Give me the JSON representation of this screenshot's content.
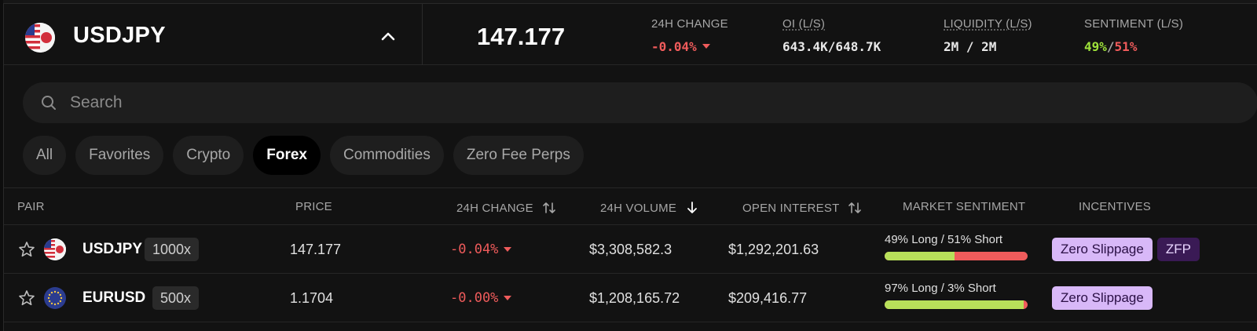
{
  "header": {
    "pair": "USDJPY",
    "price": "147.177",
    "stats": [
      {
        "label": "24H CHANGE",
        "value": "-0.04%"
      },
      {
        "label": "OI (L/S)",
        "value": "643.4K/648.7K"
      },
      {
        "label": "LIQUIDITY (L/S)",
        "value": "2M / 2M"
      },
      {
        "label": "SENTIMENT (L/S)",
        "long": "49%",
        "sep": "/",
        "short": "51%"
      }
    ]
  },
  "search": {
    "placeholder": "Search"
  },
  "tabs": [
    {
      "label": "All"
    },
    {
      "label": "Favorites"
    },
    {
      "label": "Crypto"
    },
    {
      "label": "Forex",
      "active": true
    },
    {
      "label": "Commodities"
    },
    {
      "label": "Zero Fee Perps"
    }
  ],
  "table": {
    "columns": {
      "pair": "PAIR",
      "price": "PRICE",
      "change": "24H CHANGE",
      "volume": "24H VOLUME",
      "oi": "OPEN INTEREST",
      "sentiment": "MARKET SENTIMENT",
      "incentives": "INCENTIVES"
    },
    "rows": [
      {
        "symbol": "USDJPY",
        "leverage": "1000x",
        "price": "147.177",
        "change": "-0.04%",
        "volume": "$3,308,582.3",
        "open_interest": "$1,292,201.63",
        "sentiment_text": "49% Long / 51% Short",
        "long_fraction": 0.49,
        "badges": [
          "Zero Slippage",
          "ZFP"
        ]
      },
      {
        "symbol": "EURUSD",
        "leverage": "500x",
        "price": "1.1704",
        "change": "-0.00%",
        "volume": "$1,208,165.72",
        "open_interest": "$209,416.77",
        "sentiment_text": "97% Long / 3% Short",
        "long_fraction": 0.97,
        "badges": [
          "Zero Slippage"
        ]
      }
    ]
  },
  "colors": {
    "negative": "#ef5b5b",
    "positive": "#9ee23a",
    "badge_zero_slippage": "#d8b8f8",
    "badge_zfp": "#3a1a55"
  }
}
